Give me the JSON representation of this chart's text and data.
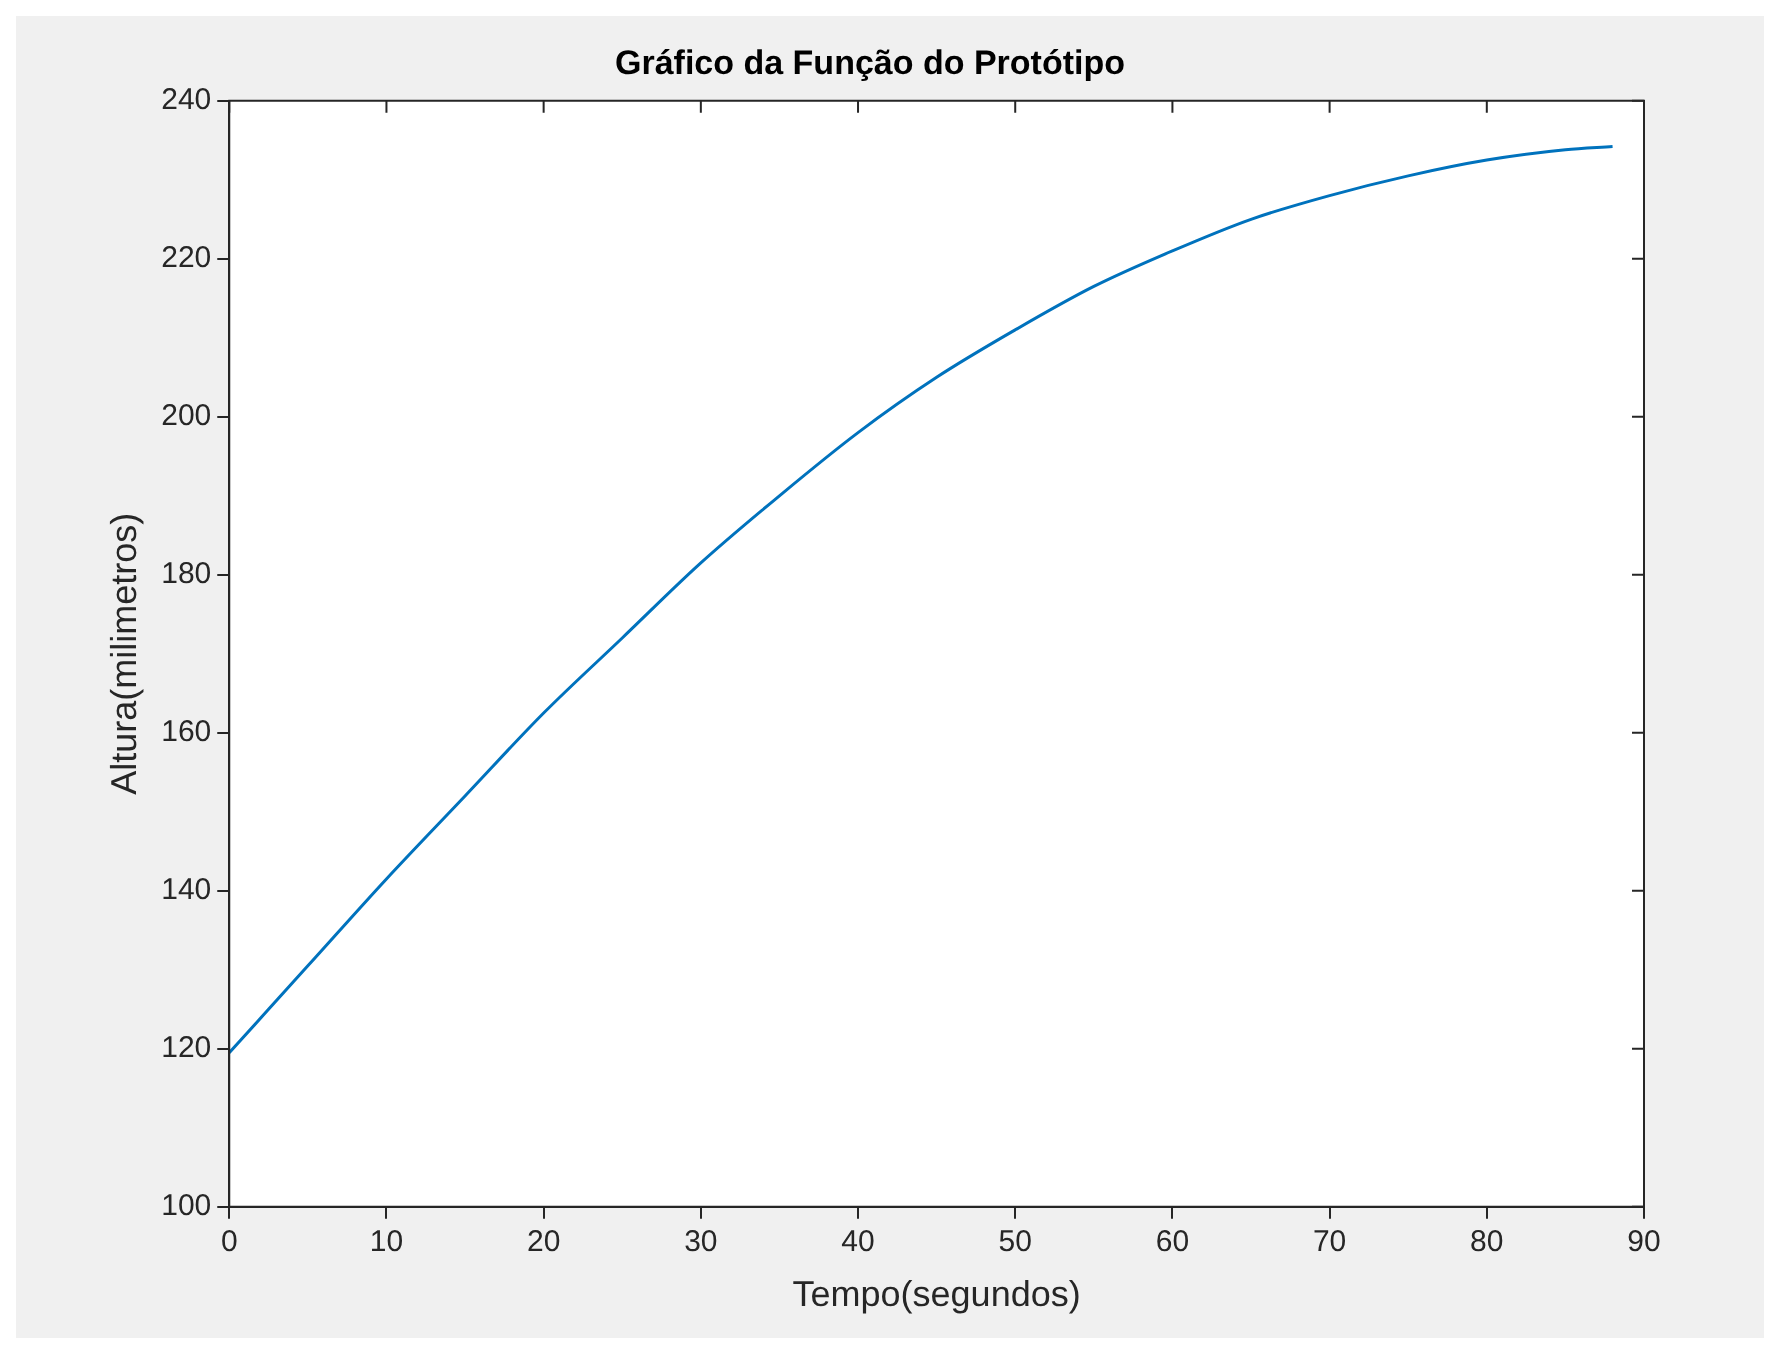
{
  "chart_data": {
    "type": "line",
    "title": "Gráfico da Função do Protótipo",
    "xlabel": "Tempo(segundos)",
    "ylabel": "Altura(milimetros)",
    "x": [
      0,
      5,
      10,
      15,
      20,
      25,
      30,
      35,
      40,
      45,
      50,
      55,
      60,
      65,
      70,
      75,
      80,
      85,
      88
    ],
    "series": [
      {
        "color": "#0072bd",
        "values": [
          119.5,
          130.5,
          141.5,
          152,
          162.5,
          172,
          181.5,
          190,
          198,
          205,
          211,
          216.5,
          221,
          225,
          228,
          230.5,
          232.5,
          233.8,
          234.2
        ]
      }
    ],
    "xlim": [
      0,
      90
    ],
    "xticks": [
      0,
      10,
      20,
      30,
      40,
      50,
      60,
      70,
      80,
      90
    ],
    "ylim": [
      100,
      240
    ],
    "yticks": [
      100,
      120,
      140,
      160,
      180,
      200,
      220,
      240
    ],
    "grid": false,
    "legend": false,
    "marker": "none",
    "line_style": "solid"
  }
}
